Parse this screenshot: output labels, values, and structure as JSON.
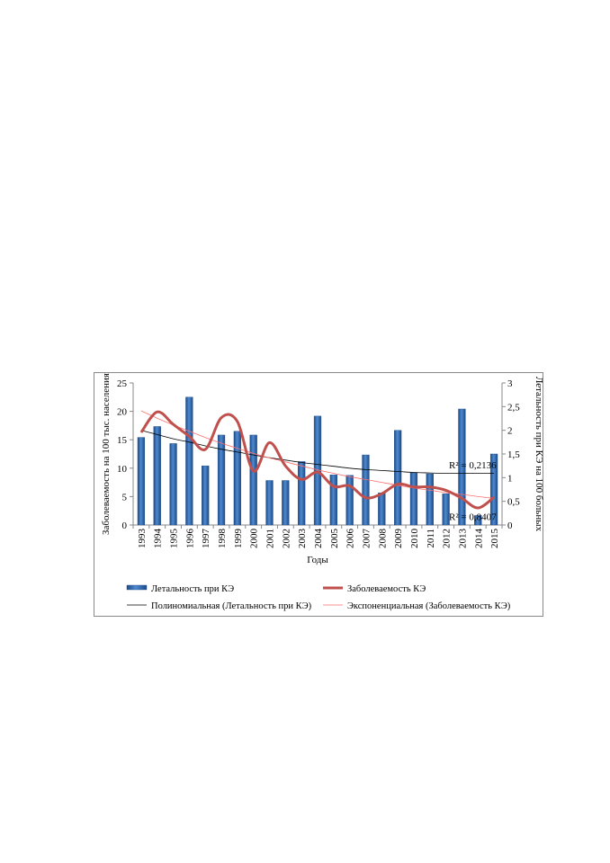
{
  "chart_data": {
    "type": "bar",
    "categories": [
      "1993",
      "1994",
      "1995",
      "1996",
      "1997",
      "1998",
      "1999",
      "2000",
      "2001",
      "2002",
      "2003",
      "2004",
      "2005",
      "2006",
      "2007",
      "2008",
      "2009",
      "2010",
      "2011",
      "2012",
      "2013",
      "2014",
      "2015"
    ],
    "series": [
      {
        "name": "Летальность при КЭ",
        "chart": "bar",
        "axis": "right",
        "values": [
          1.85,
          2.08,
          1.72,
          2.7,
          1.25,
          1.9,
          1.98,
          1.9,
          0.94,
          0.94,
          1.34,
          2.3,
          1.06,
          1.05,
          1.48,
          0.68,
          2.0,
          1.1,
          1.08,
          0.66,
          2.45,
          0.2,
          1.5
        ]
      },
      {
        "name": "Заболеваемость КЭ",
        "chart": "line",
        "axis": "left",
        "values": [
          16.3,
          19.9,
          17.7,
          15.6,
          13.3,
          18.9,
          18.2,
          9.5,
          14.5,
          10.4,
          8.0,
          9.3,
          6.8,
          6.9,
          4.8,
          5.5,
          7.2,
          6.7,
          6.7,
          6.1,
          4.7,
          3.0,
          4.9
        ]
      },
      {
        "name": "Полиномиальная (Летальность при КЭ)",
        "chart": "trendline",
        "axis": "right",
        "values": [
          2.0,
          1.91,
          1.82,
          1.75,
          1.67,
          1.6,
          1.54,
          1.48,
          1.42,
          1.37,
          1.32,
          1.28,
          1.24,
          1.2,
          1.17,
          1.15,
          1.13,
          1.11,
          1.1,
          1.09,
          1.09,
          1.09,
          1.09
        ]
      },
      {
        "name": "Экспоненциальная (Заболеваемость КЭ)",
        "chart": "trendline",
        "axis": "left",
        "values": [
          20.1,
          18.8,
          17.6,
          16.5,
          15.4,
          14.4,
          13.5,
          12.6,
          11.8,
          11.1,
          10.4,
          9.7,
          9.1,
          8.5,
          8.0,
          7.5,
          7.0,
          6.5,
          6.1,
          5.7,
          5.4,
          5.0,
          4.7
        ]
      }
    ],
    "yleft": {
      "label": "Заболеваемость на 100 тыс. населения",
      "lim": [
        0,
        25
      ],
      "ticks": [
        "0",
        "5",
        "10",
        "15",
        "20",
        "25"
      ]
    },
    "yright": {
      "label": "Летальность при КЭ на 100 больных",
      "lim": [
        0,
        3
      ],
      "ticks": [
        "0",
        "0,5",
        "1",
        "1,5",
        "2",
        "2,5",
        "3"
      ]
    },
    "xlabel": "Годы",
    "annotations": [
      "R² = 0,2136",
      "R² = 0,8407"
    ],
    "legend_position": "bottom",
    "grid": false,
    "colors": {
      "bar": "#2f6bb3",
      "bar_dark": "#1c4a86",
      "line": "#c0504d",
      "poly": "#000000",
      "exp": "#ff6e6e"
    }
  }
}
